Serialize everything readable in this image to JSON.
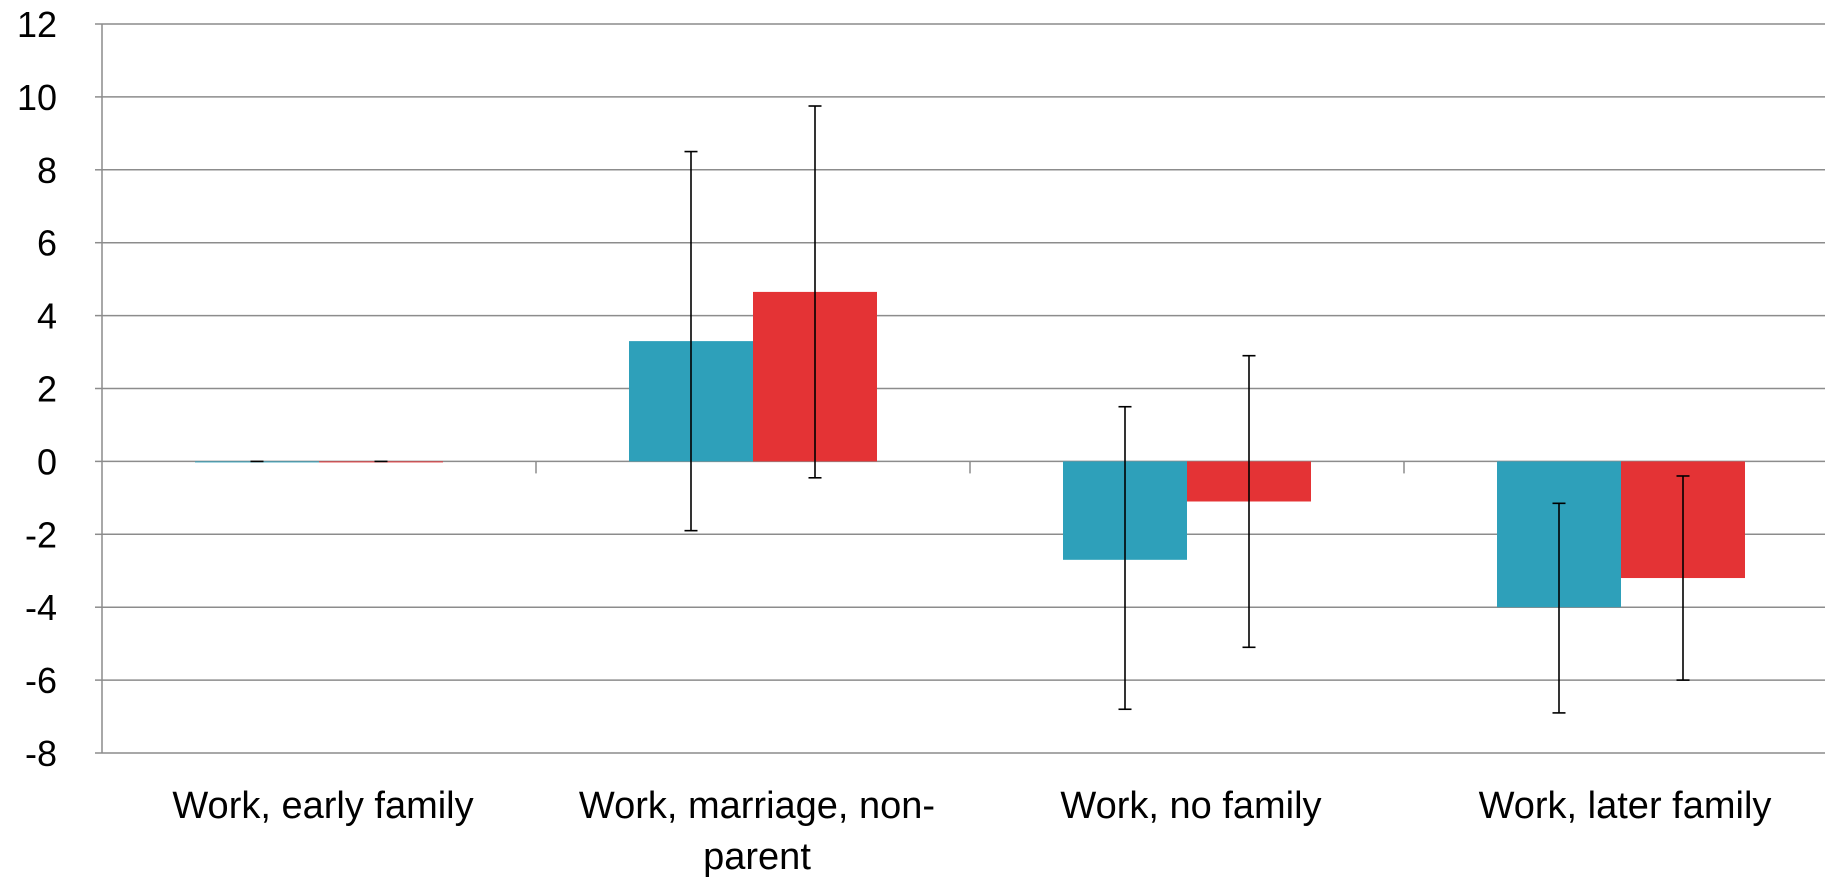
{
  "chart_data": {
    "type": "bar",
    "title": "",
    "xlabel": "",
    "ylabel": "",
    "ylim": [
      -8,
      12
    ],
    "yticks": [
      12,
      10,
      8,
      6,
      4,
      2,
      0,
      -2,
      -4,
      -6,
      -8
    ],
    "ytick_labels": [
      "12",
      "10",
      "8",
      "6",
      "4",
      "2",
      "0",
      "-2",
      "-4",
      "-6",
      "-8"
    ],
    "grid": true,
    "legend": "none",
    "categories": [
      [
        "Work, early family"
      ],
      [
        "Work, marriage, non-",
        "parent"
      ],
      [
        "Work, no family"
      ],
      [
        "Work, later family"
      ]
    ],
    "series": [
      {
        "color": "#2ea0ba",
        "values": [
          0,
          3.3,
          -2.7,
          -4.0
        ],
        "error_low": [
          0,
          -1.9,
          -6.8,
          -6.9
        ],
        "error_high": [
          0,
          8.5,
          1.5,
          -1.15
        ]
      },
      {
        "color": "#e43335",
        "values": [
          0,
          4.65,
          -1.1,
          -3.2
        ],
        "error_low": [
          0,
          -0.45,
          -5.1,
          -6.0
        ],
        "error_high": [
          0,
          9.75,
          2.9,
          -0.4
        ]
      }
    ]
  }
}
